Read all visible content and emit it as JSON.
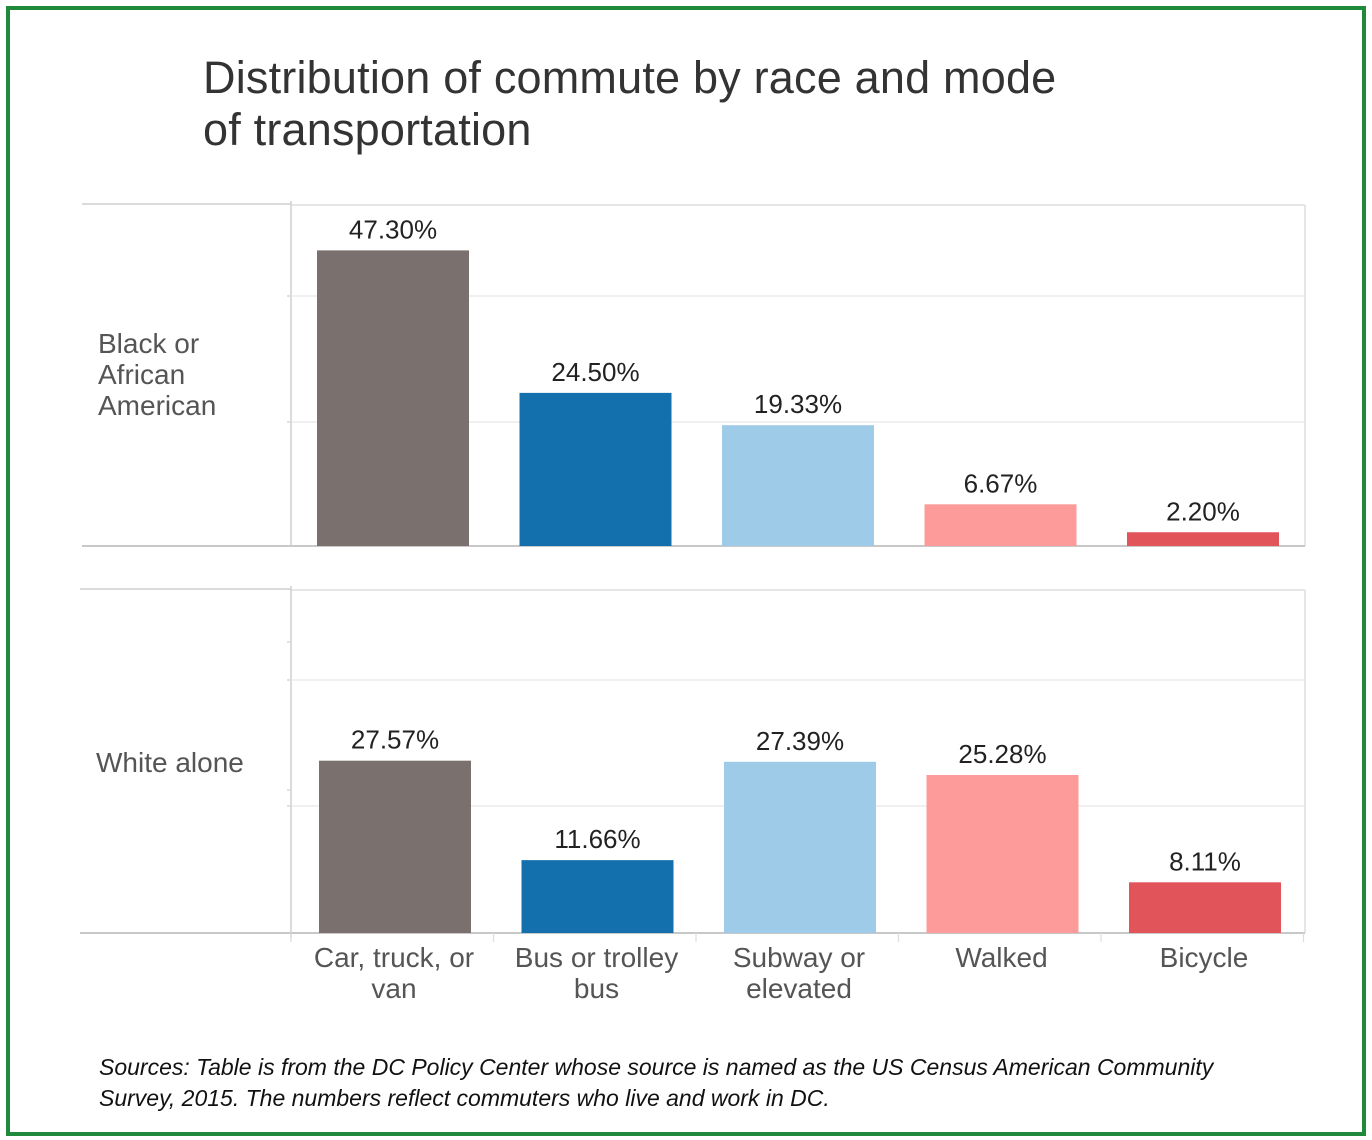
{
  "title_lines": [
    "Distribution of commute by race and mode",
    "of transportation"
  ],
  "chart_data": {
    "type": "bar",
    "title": "Distribution of commute by race and mode of transportation",
    "categories": [
      "Car, truck, or van",
      "Bus or trolley bus",
      "Subway or elevated",
      "Walked",
      "Bicycle"
    ],
    "category_label_lines": [
      [
        "Car, truck, or",
        "van"
      ],
      [
        "Bus or trolley",
        "bus"
      ],
      [
        "Subway or",
        "elevated"
      ],
      [
        "Walked"
      ],
      [
        "Bicycle"
      ]
    ],
    "colors": [
      "#7a706e",
      "#1470ad",
      "#9ecbe8",
      "#fc9b99",
      "#e0545a"
    ],
    "panels": [
      {
        "name": "Black or African American",
        "label_lines": [
          "Black or",
          "African",
          "American"
        ],
        "values": [
          47.3,
          24.5,
          19.33,
          6.67,
          2.2
        ],
        "labels": [
          "47.30%",
          "24.50%",
          "19.33%",
          "6.67%",
          "2.20%"
        ]
      },
      {
        "name": "White alone",
        "label_lines": [
          "White alone"
        ],
        "values": [
          27.57,
          11.66,
          27.39,
          25.28,
          8.11
        ],
        "labels": [
          "27.57%",
          "11.66%",
          "27.39%",
          "25.28%",
          "8.11%"
        ]
      }
    ],
    "grid": true,
    "legend": "none"
  },
  "source_lines": [
    "Sources: Table is from the DC Policy Center whose source is named as the US Census American Community",
    "Survey, 2015. The numbers reflect commuters who live and work in DC."
  ]
}
